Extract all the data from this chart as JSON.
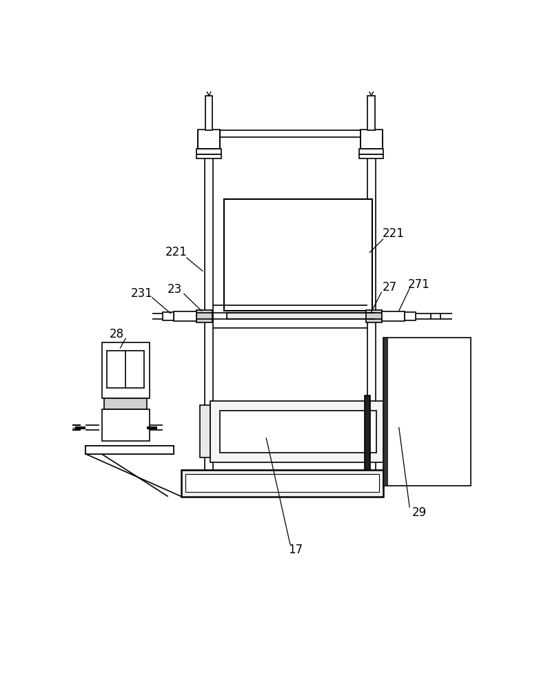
{
  "bg_color": "#ffffff",
  "lc": "#000000",
  "lw": 1.2,
  "fs": 12
}
